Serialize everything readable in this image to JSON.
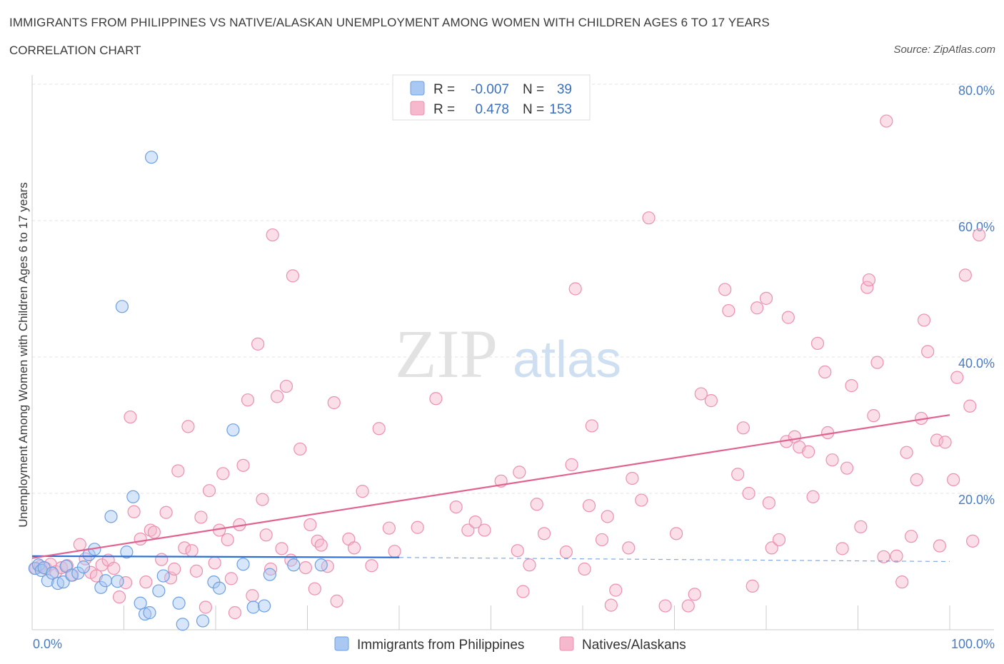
{
  "header": {
    "title": "IMMIGRANTS FROM PHILIPPINES VS NATIVE/ALASKAN UNEMPLOYMENT AMONG WOMEN WITH CHILDREN AGES 6 TO 17 YEARS",
    "subtitle": "CORRELATION CHART",
    "source": "Source: ZipAtlas.com"
  },
  "watermark": {
    "zip": "ZIP",
    "atlas": "atlas"
  },
  "legend": {
    "r_label": "R =",
    "n_label": "N =",
    "rows": [
      {
        "r": "-0.007",
        "n": "39",
        "color": "#a9c8f2"
      },
      {
        "r": "0.478",
        "n": "153",
        "color": "#f5b8cd"
      }
    ]
  },
  "bottom_legend": [
    "Immigrants from Philippines",
    "Natives/Alaskans"
  ],
  "colors": {
    "blue_fill": "#a9c8f2",
    "blue_stroke": "#6d9fe0",
    "blue_line": "#2f6fd0",
    "pink_fill": "#f5b8cd",
    "pink_stroke": "#ec8fb0",
    "pink_line": "#e2628f"
  },
  "chart_data": {
    "type": "scatter",
    "title": "IMMIGRANTS FROM PHILIPPINES VS NATIVE/ALASKAN UNEMPLOYMENT AMONG WOMEN WITH CHILDREN AGES 6 TO 17 YEARS",
    "xlabel": "",
    "ylabel": "Unemployment Among Women with Children Ages 6 to 17 years",
    "xlim": [
      0,
      100
    ],
    "ylim": [
      0,
      80
    ],
    "x_tick_labels": [
      "0.0%",
      "100.0%"
    ],
    "y_ticks": [
      20,
      40,
      60,
      80
    ],
    "y_tick_labels": [
      "20.0%",
      "40.0%",
      "60.0%",
      "80.0%"
    ],
    "grid": true,
    "series": [
      {
        "name": "Immigrants from Philippines",
        "r": -0.007,
        "n": 39,
        "trend": {
          "x": [
            0,
            40
          ],
          "y": [
            10.8,
            10.6
          ],
          "dashed_to": [
            100,
            10.0
          ]
        },
        "points": [
          [
            0.3,
            9.0
          ],
          [
            0.7,
            9.5
          ],
          [
            1.0,
            8.7
          ],
          [
            1.3,
            9.1
          ],
          [
            1.7,
            7.2
          ],
          [
            2.2,
            8.3
          ],
          [
            2.8,
            6.8
          ],
          [
            3.4,
            7.0
          ],
          [
            3.7,
            9.3
          ],
          [
            4.3,
            8.0
          ],
          [
            5.0,
            8.3
          ],
          [
            5.6,
            9.2
          ],
          [
            6.2,
            11.0
          ],
          [
            6.8,
            11.8
          ],
          [
            7.5,
            6.2
          ],
          [
            8.0,
            7.2
          ],
          [
            8.6,
            16.6
          ],
          [
            9.3,
            7.1
          ],
          [
            9.8,
            47.4
          ],
          [
            10.3,
            11.4
          ],
          [
            11.0,
            19.5
          ],
          [
            11.8,
            3.9
          ],
          [
            12.3,
            2.3
          ],
          [
            12.8,
            2.5
          ],
          [
            13.8,
            5.7
          ],
          [
            14.3,
            7.9
          ],
          [
            13.0,
            69.3
          ],
          [
            16.0,
            3.9
          ],
          [
            16.4,
            0.8
          ],
          [
            18.6,
            1.3
          ],
          [
            19.8,
            7.0
          ],
          [
            20.4,
            6.1
          ],
          [
            21.9,
            29.3
          ],
          [
            23.0,
            9.6
          ],
          [
            24.1,
            3.3
          ],
          [
            25.3,
            3.5
          ],
          [
            25.9,
            8.1
          ],
          [
            28.5,
            9.5
          ],
          [
            31.5,
            9.5
          ]
        ]
      },
      {
        "name": "Natives/Alaskans",
        "r": 0.478,
        "n": 153,
        "trend": {
          "x": [
            0,
            100
          ],
          "y": [
            10.5,
            31.5
          ]
        },
        "points": [
          [
            0.4,
            9.0
          ],
          [
            0.9,
            9.3
          ],
          [
            1.5,
            9.0
          ],
          [
            2.0,
            9.6
          ],
          [
            2.6,
            8.5
          ],
          [
            3.2,
            9.1
          ],
          [
            3.8,
            9.4
          ],
          [
            4.4,
            8.0
          ],
          [
            5.2,
            12.5
          ],
          [
            5.8,
            10.4
          ],
          [
            6.4,
            8.4
          ],
          [
            7.0,
            7.9
          ],
          [
            7.6,
            9.5
          ],
          [
            8.3,
            10.2
          ],
          [
            8.9,
            9.0
          ],
          [
            9.5,
            4.8
          ],
          [
            10.2,
            6.9
          ],
          [
            10.7,
            31.2
          ],
          [
            11.1,
            17.3
          ],
          [
            11.8,
            13.3
          ],
          [
            12.4,
            7.0
          ],
          [
            12.9,
            14.6
          ],
          [
            13.3,
            14.3
          ],
          [
            14.1,
            10.3
          ],
          [
            14.6,
            17.2
          ],
          [
            15.1,
            7.6
          ],
          [
            15.5,
            8.9
          ],
          [
            15.9,
            23.3
          ],
          [
            16.6,
            12.0
          ],
          [
            17.0,
            29.8
          ],
          [
            17.4,
            11.6
          ],
          [
            17.9,
            8.6
          ],
          [
            18.4,
            16.5
          ],
          [
            18.9,
            3.3
          ],
          [
            19.3,
            20.4
          ],
          [
            19.9,
            9.8
          ],
          [
            20.4,
            14.6
          ],
          [
            20.8,
            22.9
          ],
          [
            21.3,
            13.2
          ],
          [
            21.7,
            7.5
          ],
          [
            22.1,
            2.5
          ],
          [
            22.6,
            15.4
          ],
          [
            23.0,
            24.1
          ],
          [
            23.5,
            33.7
          ],
          [
            24.0,
            5.0
          ],
          [
            24.6,
            41.9
          ],
          [
            25.1,
            19.1
          ],
          [
            25.5,
            13.9
          ],
          [
            26.0,
            8.9
          ],
          [
            26.2,
            57.9
          ],
          [
            26.7,
            34.2
          ],
          [
            27.2,
            11.9
          ],
          [
            27.7,
            35.7
          ],
          [
            28.2,
            10.2
          ],
          [
            28.4,
            51.9
          ],
          [
            29.2,
            26.5
          ],
          [
            29.8,
            9.1
          ],
          [
            30.3,
            15.4
          ],
          [
            30.8,
            6.0
          ],
          [
            31.1,
            13.0
          ],
          [
            31.5,
            12.4
          ],
          [
            32.2,
            9.3
          ],
          [
            32.9,
            33.3
          ],
          [
            33.2,
            4.2
          ],
          [
            34.5,
            13.3
          ],
          [
            35.1,
            12.0
          ],
          [
            36.0,
            20.3
          ],
          [
            37.0,
            9.4
          ],
          [
            37.8,
            29.5
          ],
          [
            38.9,
            14.9
          ],
          [
            39.5,
            11.5
          ],
          [
            42.0,
            15.0
          ],
          [
            44.0,
            33.9
          ],
          [
            46.2,
            18.0
          ],
          [
            47.5,
            14.6
          ],
          [
            48.3,
            15.8
          ],
          [
            49.3,
            14.6
          ],
          [
            51.1,
            21.8
          ],
          [
            52.9,
            11.6
          ],
          [
            53.1,
            23.1
          ],
          [
            53.5,
            5.6
          ],
          [
            54.2,
            9.5
          ],
          [
            55.0,
            18.4
          ],
          [
            55.8,
            14.1
          ],
          [
            58.2,
            11.4
          ],
          [
            58.8,
            24.2
          ],
          [
            59.2,
            50.0
          ],
          [
            60.2,
            8.9
          ],
          [
            60.7,
            18.2
          ],
          [
            61.0,
            29.9
          ],
          [
            62.1,
            13.2
          ],
          [
            62.7,
            16.6
          ],
          [
            63.1,
            3.6
          ],
          [
            63.6,
            5.8
          ],
          [
            65.0,
            12.0
          ],
          [
            65.4,
            22.2
          ],
          [
            66.4,
            19.0
          ],
          [
            67.2,
            60.4
          ],
          [
            69.0,
            3.5
          ],
          [
            70.2,
            14.1
          ],
          [
            71.5,
            3.5
          ],
          [
            72.2,
            5.2
          ],
          [
            72.9,
            34.6
          ],
          [
            74.0,
            33.6
          ],
          [
            75.5,
            49.9
          ],
          [
            75.9,
            46.8
          ],
          [
            76.9,
            22.8
          ],
          [
            77.5,
            29.6
          ],
          [
            78.1,
            20.0
          ],
          [
            78.5,
            6.4
          ],
          [
            79.0,
            47.2
          ],
          [
            80.0,
            48.6
          ],
          [
            80.3,
            18.6
          ],
          [
            80.6,
            12.0
          ],
          [
            81.4,
            13.2
          ],
          [
            82.2,
            27.6
          ],
          [
            82.4,
            45.8
          ],
          [
            83.1,
            28.3
          ],
          [
            83.6,
            26.8
          ],
          [
            84.6,
            26.1
          ],
          [
            85.1,
            19.5
          ],
          [
            85.6,
            42.0
          ],
          [
            86.4,
            37.8
          ],
          [
            86.7,
            28.9
          ],
          [
            87.2,
            24.9
          ],
          [
            88.3,
            11.9
          ],
          [
            88.8,
            23.7
          ],
          [
            89.3,
            35.8
          ],
          [
            90.3,
            15.1
          ],
          [
            91.0,
            50.2
          ],
          [
            91.2,
            51.3
          ],
          [
            91.7,
            31.4
          ],
          [
            92.1,
            39.2
          ],
          [
            92.8,
            10.7
          ],
          [
            93.1,
            74.6
          ],
          [
            94.2,
            10.8
          ],
          [
            94.8,
            7.0
          ],
          [
            95.3,
            26.0
          ],
          [
            95.8,
            13.7
          ],
          [
            96.4,
            22.0
          ],
          [
            96.9,
            31.0
          ],
          [
            97.2,
            45.4
          ],
          [
            97.6,
            40.8
          ],
          [
            98.6,
            27.8
          ],
          [
            98.9,
            12.3
          ],
          [
            99.5,
            27.5
          ],
          [
            100.4,
            22.0
          ],
          [
            100.8,
            37.0
          ],
          [
            101.7,
            52.0
          ],
          [
            102.2,
            32.8
          ],
          [
            102.5,
            13.0
          ],
          [
            103.2,
            57.9
          ]
        ]
      }
    ]
  }
}
